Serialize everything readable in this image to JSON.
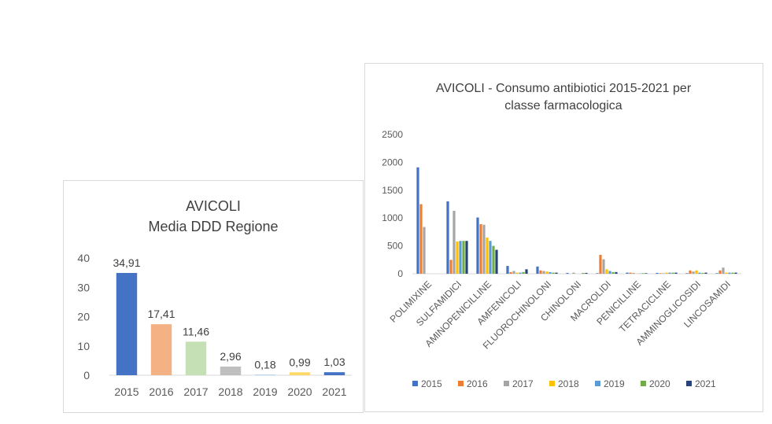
{
  "chart_data": [
    {
      "type": "bar",
      "title": "AVICOLI",
      "subtitle": "Media DDD Regione",
      "categories": [
        "2015",
        "2016",
        "2017",
        "2018",
        "2019",
        "2020",
        "2021"
      ],
      "values": [
        34.91,
        17.41,
        11.46,
        2.96,
        0.18,
        0.99,
        1.03
      ],
      "data_labels": [
        "34,91",
        "17,41",
        "11,46",
        "2,96",
        "0,18",
        "0,99",
        "1,03"
      ],
      "bar_colors": [
        "#4472c4",
        "#f4b183",
        "#c5e0b4",
        "#bfbfbf",
        "#9dc3e6",
        "#ffd966",
        "#4472c4"
      ],
      "ylim": [
        0,
        40
      ],
      "yticks": [
        "0",
        "10",
        "20",
        "30",
        "40"
      ],
      "grid": false,
      "legend": "none"
    },
    {
      "type": "bar",
      "title": "AVICOLI - Consumo antibiotici 2015-2021 per",
      "subtitle": "classe farmacologica",
      "categories": [
        "POLIMIXINE",
        "SULFAMIDICI",
        "AMINOPENICILLINE",
        "AMFENICOLI",
        "FLUOROCHINOLONI",
        "CHINOLONI",
        "MACROLIDI",
        "PENICILLINE",
        "TETRACICLINE",
        "AMMINOGLICOSIDI",
        "LINCOSAMIDI"
      ],
      "series": [
        {
          "name": "2015",
          "color": "#4472c4",
          "values": [
            1910,
            1300,
            1010,
            140,
            130,
            15,
            10,
            20,
            15,
            10,
            10
          ]
        },
        {
          "name": "2016",
          "color": "#ed7d31",
          "values": [
            1250,
            250,
            890,
            30,
            60,
            0,
            340,
            20,
            10,
            60,
            60
          ]
        },
        {
          "name": "2017",
          "color": "#a5a5a5",
          "values": [
            840,
            1130,
            880,
            50,
            50,
            20,
            260,
            15,
            10,
            40,
            110
          ]
        },
        {
          "name": "2018",
          "color": "#ffc000",
          "values": [
            0,
            580,
            650,
            20,
            40,
            0,
            80,
            5,
            20,
            60,
            20
          ]
        },
        {
          "name": "2019",
          "color": "#5b9bd5",
          "values": [
            0,
            590,
            590,
            20,
            30,
            0,
            50,
            5,
            20,
            20,
            20
          ]
        },
        {
          "name": "2020",
          "color": "#70ad47",
          "values": [
            0,
            590,
            500,
            30,
            20,
            15,
            30,
            10,
            20,
            15,
            20
          ]
        },
        {
          "name": "2021",
          "color": "#264478",
          "values": [
            0,
            590,
            430,
            80,
            20,
            15,
            30,
            10,
            20,
            20,
            20
          ]
        }
      ],
      "ylim": [
        0,
        2500
      ],
      "yticks": [
        "0",
        "500",
        "1000",
        "1500",
        "2000",
        "2500"
      ],
      "grid": false,
      "legend": "bottom"
    }
  ]
}
